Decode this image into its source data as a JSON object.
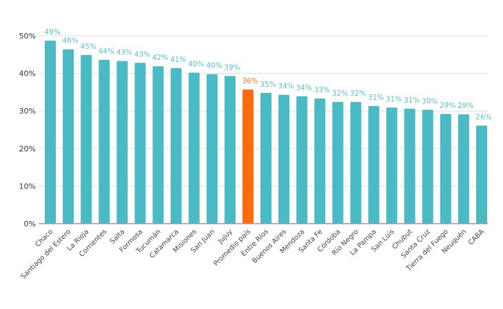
{
  "chart_data": {
    "type": "bar",
    "title": "",
    "xlabel": "",
    "ylabel": "",
    "ylim": [
      0,
      50
    ],
    "yticks": [
      0,
      10,
      20,
      30,
      40,
      50
    ],
    "ytick_labels": [
      "0%",
      "10%",
      "20%",
      "30%",
      "40%",
      "50%"
    ],
    "grid": true,
    "legend": "none",
    "colors": {
      "bar": "#4ABBC4",
      "highlight": "#FF6A0D",
      "label": "#5BBFC8",
      "highlight_label": "#FF7A20",
      "grid": "#DDDDDD",
      "axis": "#999999"
    },
    "highlight_category": "Promedio país",
    "categories": [
      "Chaco",
      "Santiago del Estero",
      "La Rioja",
      "Corrientes",
      "Salta",
      "Formosa",
      "Tucumán",
      "Catamarca",
      "Misiones",
      "San Juan",
      "Jujuy",
      "Promedio país",
      "Entre Ríos",
      "Buenos Aires",
      "Mendoza",
      "Santa Fe",
      "Córdoba",
      "Río Negro",
      "La Pampa",
      "San Luis",
      "Chubut",
      "Santa Cruz",
      "Tierra del Fuego",
      "Neuquén",
      "CABA"
    ],
    "values": [
      48.7,
      46.4,
      44.9,
      43.6,
      43.3,
      42.8,
      41.9,
      41.4,
      40.2,
      39.8,
      39.3,
      35.7,
      34.8,
      34.3,
      33.9,
      33.3,
      32.4,
      32.4,
      31.3,
      30.9,
      30.6,
      30.3,
      29.2,
      29.1,
      26.1
    ],
    "data_labels": [
      "49%",
      "46%",
      "45%",
      "44%",
      "43%",
      "43%",
      "42%",
      "41%",
      "40%",
      "40%",
      "39%",
      "36%",
      "35%",
      "34%",
      "34%",
      "33%",
      "32%",
      "32%",
      "31%",
      "31%",
      "31%",
      "30%",
      "29%",
      "29%",
      "26%"
    ]
  }
}
